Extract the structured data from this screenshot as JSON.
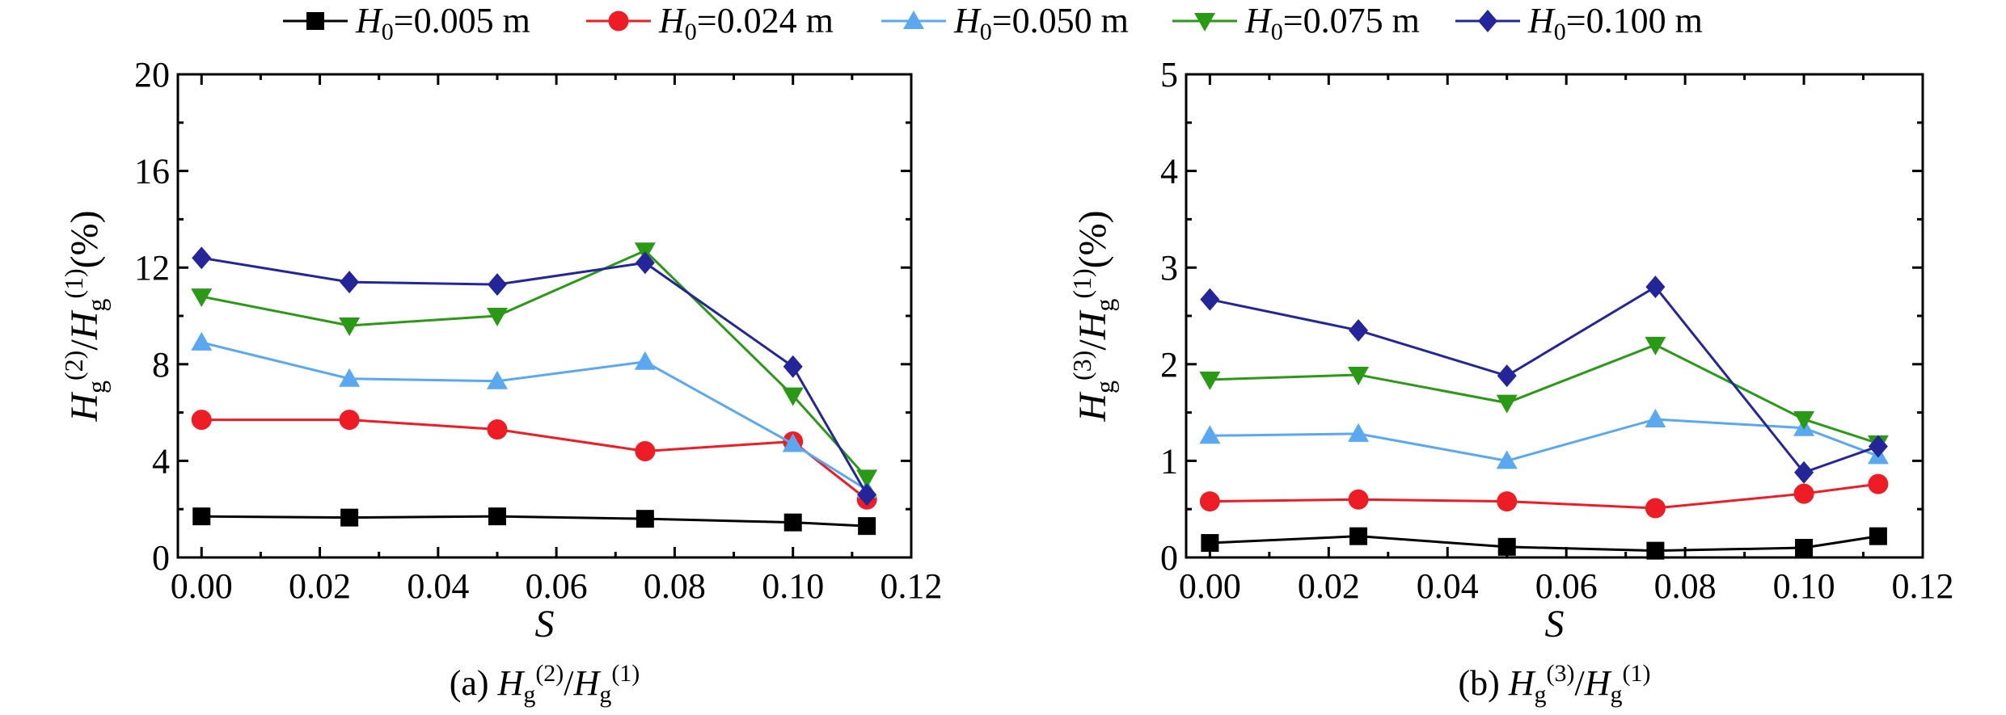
{
  "legend": [
    {
      "prefix": "H",
      "sub": "0",
      "suffix": "=0.005 m",
      "color": "#000000",
      "marker": "square"
    },
    {
      "prefix": "H",
      "sub": "0",
      "suffix": "=0.024 m",
      "color": "#ee1c25",
      "marker": "circle"
    },
    {
      "prefix": "H",
      "sub": "0",
      "suffix": "=0.050 m",
      "color": "#5aa9f0",
      "marker": "triangle-up"
    },
    {
      "prefix": "H",
      "sub": "0",
      "suffix": "=0.075 m",
      "color": "#2a9a16",
      "marker": "triangle-down"
    },
    {
      "prefix": "H",
      "sub": "0",
      "suffix": "=0.100 m",
      "color": "#25259a",
      "marker": "diamond"
    }
  ],
  "chart_data": [
    {
      "type": "line",
      "caption": "(a) Hg(2)/Hg(1)",
      "caption_parts": {
        "label": "(a) ",
        "H1": "H",
        "g1": "g",
        "s1": "(2)",
        "slash": "/",
        "H2": "H",
        "g2": "g",
        "s2": "(1)"
      },
      "xlabel": "S",
      "ylabel": "Hg(2)/Hg(1)(%)",
      "ylabel_parts": {
        "H1": "H",
        "g1": "g",
        "s1": "(2)",
        "slash": "/",
        "H2": "H",
        "g2": "g",
        "s2": "(1)",
        "unit": "(%)"
      },
      "xlim": [
        -0.004,
        0.12
      ],
      "ylim": [
        0,
        20
      ],
      "xticks": [
        0.0,
        0.02,
        0.04,
        0.06,
        0.08,
        0.1,
        0.12
      ],
      "xtick_labels": [
        "0.00",
        "0.02",
        "0.04",
        "0.06",
        "0.08",
        "0.10",
        "0.12"
      ],
      "yticks": [
        0,
        4,
        8,
        12,
        16,
        20
      ],
      "ytick_labels": [
        "0",
        "4",
        "8",
        "12",
        "16",
        "20"
      ],
      "x": [
        0.0,
        0.025,
        0.05,
        0.075,
        0.1,
        0.1125
      ],
      "series": [
        {
          "name": "H0=0.005 m",
          "values": [
            1.7,
            1.65,
            1.7,
            1.6,
            1.45,
            1.3
          ]
        },
        {
          "name": "H0=0.024 m",
          "values": [
            5.7,
            5.7,
            5.3,
            4.4,
            4.8,
            2.4
          ]
        },
        {
          "name": "H0=0.050 m",
          "values": [
            8.9,
            7.4,
            7.3,
            8.1,
            4.7,
            2.8
          ]
        },
        {
          "name": "H0=0.075 m",
          "values": [
            10.8,
            9.6,
            10.0,
            12.7,
            6.7,
            3.3
          ]
        },
        {
          "name": "H0=0.100 m",
          "values": [
            12.4,
            11.4,
            11.3,
            12.2,
            7.9,
            2.6
          ]
        }
      ],
      "grid": false
    },
    {
      "type": "line",
      "caption": "(b) Hg(3)/Hg(1)",
      "caption_parts": {
        "label": "(b) ",
        "H1": "H",
        "g1": "g",
        "s1": "(3)",
        "slash": "/",
        "H2": "H",
        "g2": "g",
        "s2": "(1)"
      },
      "xlabel": "S",
      "ylabel": "Hg(3)/Hg(1)(%)",
      "ylabel_parts": {
        "H1": "H",
        "g1": "g",
        "s1": "(3)",
        "slash": "/",
        "H2": "H",
        "g2": "g",
        "s2": "(1)",
        "unit": "(%)"
      },
      "xlim": [
        -0.004,
        0.12
      ],
      "ylim": [
        0,
        5
      ],
      "xticks": [
        0.0,
        0.02,
        0.04,
        0.06,
        0.08,
        0.1,
        0.12
      ],
      "xtick_labels": [
        "0.00",
        "0.02",
        "0.04",
        "0.06",
        "0.08",
        "0.10",
        "0.12"
      ],
      "yticks": [
        0,
        1,
        2,
        3,
        4,
        5
      ],
      "ytick_labels": [
        "0",
        "1",
        "2",
        "3",
        "4",
        "5"
      ],
      "x": [
        0.0,
        0.025,
        0.05,
        0.075,
        0.1,
        0.1125
      ],
      "series": [
        {
          "name": "H0=0.005 m",
          "values": [
            0.15,
            0.22,
            0.11,
            0.07,
            0.1,
            0.22
          ]
        },
        {
          "name": "H0=0.024 m",
          "values": [
            0.58,
            0.6,
            0.58,
            0.51,
            0.66,
            0.76
          ]
        },
        {
          "name": "H0=0.050 m",
          "values": [
            1.26,
            1.28,
            1.0,
            1.43,
            1.34,
            1.05
          ]
        },
        {
          "name": "H0=0.075 m",
          "values": [
            1.84,
            1.89,
            1.6,
            2.2,
            1.43,
            1.18
          ]
        },
        {
          "name": "H0=0.100 m",
          "values": [
            2.67,
            2.35,
            1.88,
            2.8,
            0.88,
            1.15
          ]
        }
      ],
      "grid": false
    }
  ]
}
